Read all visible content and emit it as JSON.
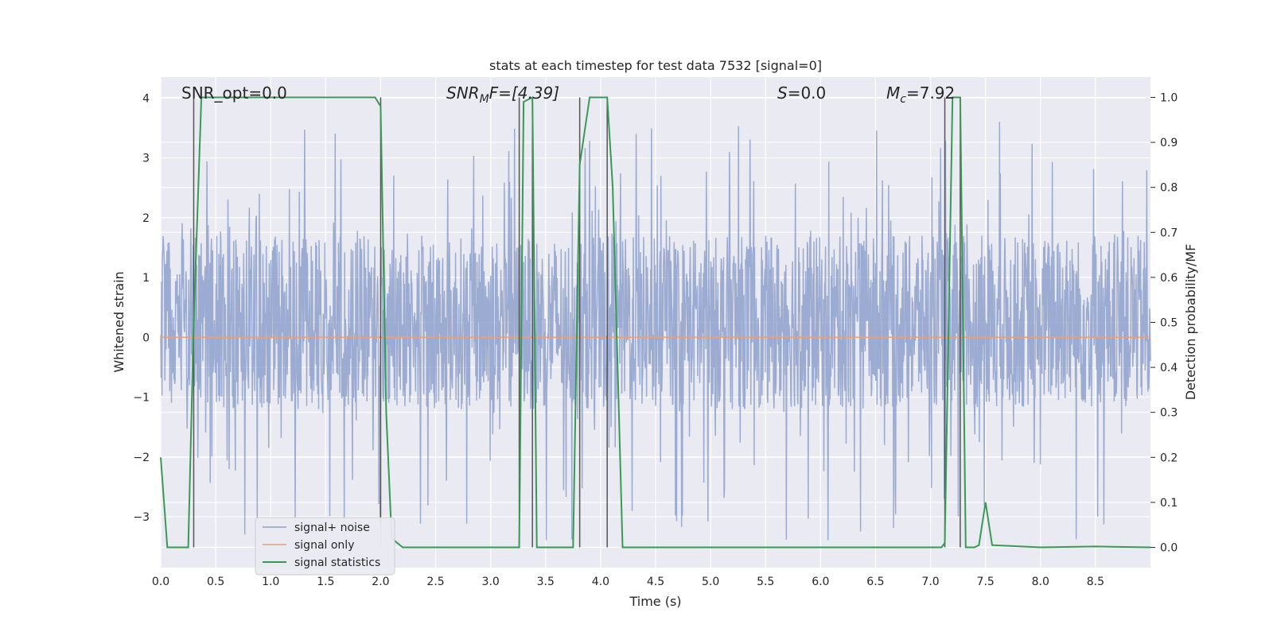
{
  "chart_data": {
    "type": "line",
    "title": "stats at each timestep for test data 7532 [signal=0]",
    "xlabel": "Time (s)",
    "ylabel_left": "Whitened strain",
    "ylabel_right": "Detection probability/MF",
    "xlim": [
      0.0,
      9.0
    ],
    "ylim_left": [
      -3.85,
      4.35
    ],
    "ylim_right": [
      -0.045,
      1.045
    ],
    "x_ticks": [
      "0.0",
      "0.5",
      "1.0",
      "1.5",
      "2.0",
      "2.5",
      "3.0",
      "3.5",
      "4.0",
      "4.5",
      "5.0",
      "5.5",
      "6.0",
      "6.5",
      "7.0",
      "7.5",
      "8.0",
      "8.5"
    ],
    "y_ticks_left": [
      "−3",
      "−2",
      "−1",
      "0",
      "1",
      "2",
      "3",
      "4"
    ],
    "y_ticks_right": [
      "0.0",
      "0.1",
      "0.2",
      "0.3",
      "0.4",
      "0.5",
      "0.6",
      "0.7",
      "0.8",
      "0.9",
      "1.0"
    ],
    "annotations": {
      "snr_opt": "SNR_opt=0.0",
      "snr_mf_main": "SNR",
      "snr_mf_sub": "M",
      "snr_mf_tail": "F=[4.39]",
      "s_main": "S",
      "s_tail": "=0.0",
      "mc_main": "M",
      "mc_sub": "c",
      "mc_tail": "=7.92"
    },
    "legend": {
      "position": "lower-left",
      "entries": [
        "signal+ noise",
        "signal only",
        "signal statistics"
      ]
    },
    "colors": {
      "noise": "#8da0cb",
      "signal_only": "#e5a07c",
      "statistics": "#3a9a55",
      "vlines": "#555555",
      "plot_bg": "#eaeaf2",
      "grid": "#ffffff"
    },
    "series": [
      {
        "name": "signal+ noise",
        "axis": "left",
        "description": "whitened noise, envelope approx -1.2..1.7 with spikes to about 3.6 and -3.4",
        "x_range": [
          0.0,
          9.0
        ],
        "amplitude_core": [
          -1.2,
          1.7
        ],
        "amplitude_extremes": [
          -3.4,
          3.65
        ]
      },
      {
        "name": "signal only",
        "axis": "left",
        "x": [
          0.0,
          9.0
        ],
        "y": [
          0.0,
          0.0
        ]
      },
      {
        "name": "signal statistics",
        "axis": "right",
        "x": [
          0.0,
          0.06,
          0.25,
          0.3,
          0.37,
          0.45,
          1.95,
          2.0,
          2.05,
          2.1,
          2.2,
          2.5,
          3.2,
          3.26,
          3.3,
          3.38,
          3.42,
          3.75,
          3.81,
          3.9,
          4.0,
          4.06,
          4.11,
          4.2,
          7.0,
          7.1,
          7.13,
          7.2,
          7.27,
          7.32,
          7.4,
          7.44,
          7.5,
          7.56,
          8.0,
          8.5,
          9.0
        ],
        "y": [
          0.2,
          0.0,
          0.0,
          0.5,
          1.0,
          1.0,
          1.0,
          0.98,
          0.3,
          0.02,
          0.0,
          0.0,
          0.0,
          0.0,
          0.99,
          1.0,
          0.0,
          0.0,
          0.85,
          1.0,
          1.0,
          1.0,
          0.8,
          0.0,
          0.0,
          0.0,
          0.01,
          1.0,
          1.0,
          0.0,
          0.0,
          0.005,
          0.1,
          0.005,
          0.0,
          0.002,
          0.0
        ]
      }
    ],
    "vlines": {
      "axis": "right",
      "segments": [
        {
          "x": 0.3,
          "y0": 0.0,
          "y1": 1.0
        },
        {
          "x": 2.0,
          "y0": 0.0,
          "y1": 1.0
        },
        {
          "x": 3.26,
          "y0": 0.0,
          "y1": 1.0
        },
        {
          "x": 3.38,
          "y0": 0.0,
          "y1": 1.0
        },
        {
          "x": 3.81,
          "y0": 0.0,
          "y1": 1.0
        },
        {
          "x": 4.06,
          "y0": 0.0,
          "y1": 1.0
        },
        {
          "x": 7.13,
          "y0": 0.0,
          "y1": 1.0
        },
        {
          "x": 7.27,
          "y0": 0.0,
          "y1": 1.0
        }
      ]
    }
  }
}
